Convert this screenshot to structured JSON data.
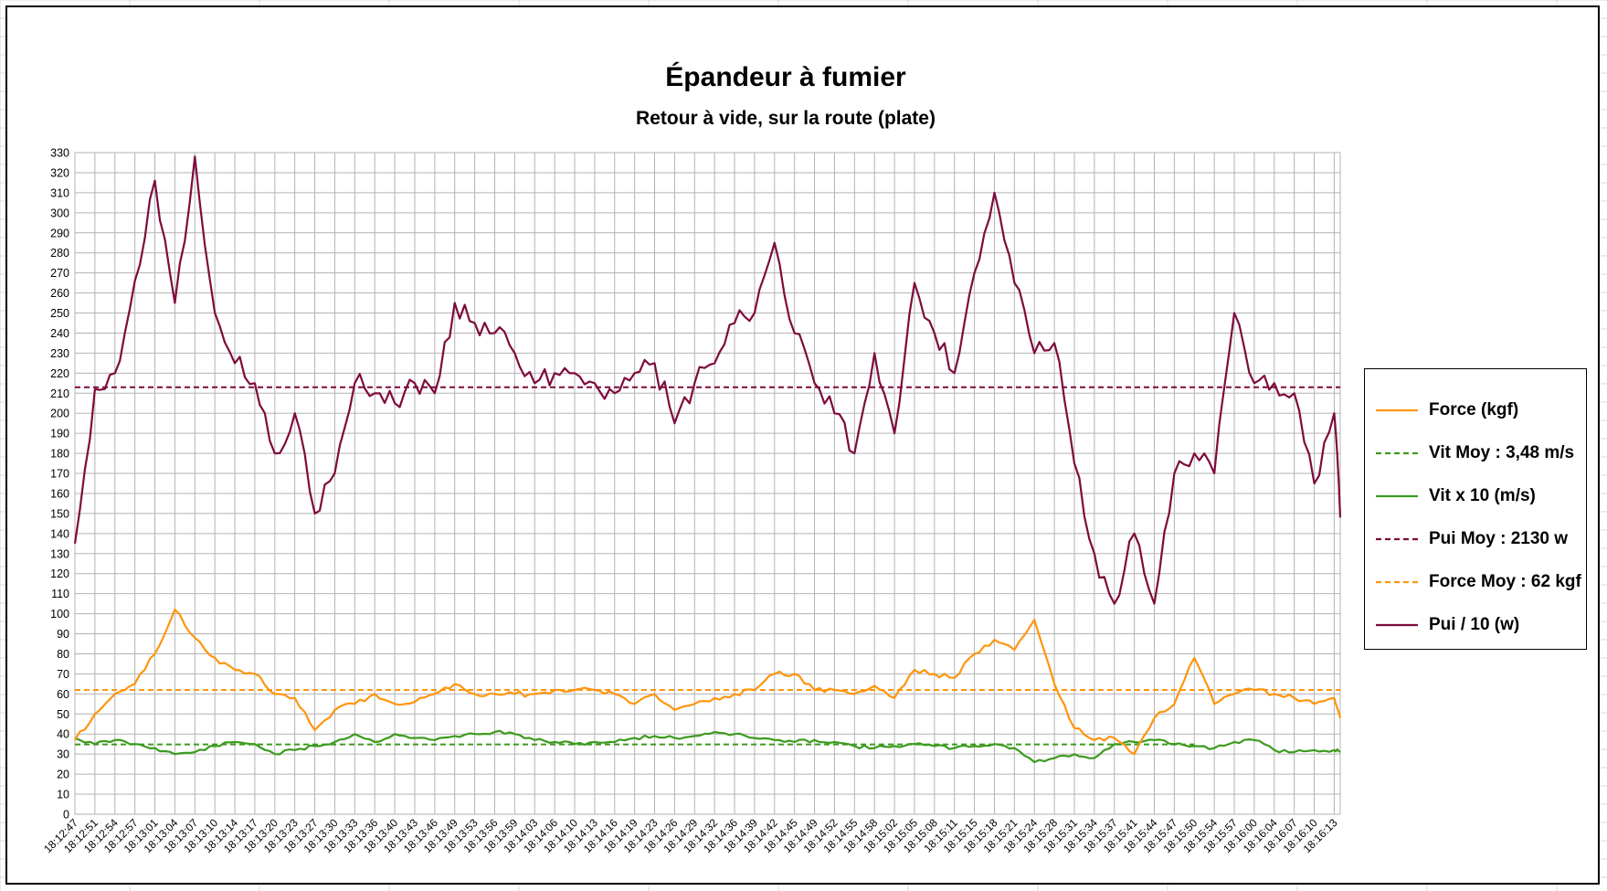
{
  "chart_data": {
    "type": "line",
    "title": "Épandeur à fumier",
    "subtitle": "Retour à vide, sur la route (plate)",
    "xlabel": "",
    "ylabel": "",
    "ylim": [
      0,
      330
    ],
    "ytick_step": 10,
    "grid": true,
    "legend_position": "right",
    "x_labels": [
      "18:12:47",
      "18:12:51",
      "18:12:54",
      "18:12:57",
      "18:13:01",
      "18:13:04",
      "18:13:07",
      "18:13:10",
      "18:13:14",
      "18:13:17",
      "18:13:20",
      "18:13:23",
      "18:13:27",
      "18:13:30",
      "18:13:33",
      "18:13:36",
      "18:13:40",
      "18:13:43",
      "18:13:46",
      "18:13:49",
      "18:13:53",
      "18:13:56",
      "18:13:59",
      "18:14:03",
      "18:14:06",
      "18:14:10",
      "18:14:13",
      "18:14:16",
      "18:14:19",
      "18:14:23",
      "18:14:26",
      "18:14:29",
      "18:14:32",
      "18:14:36",
      "18:14:39",
      "18:14:42",
      "18:14:45",
      "18:14:49",
      "18:14:52",
      "18:14:55",
      "18:14:58",
      "18:15:02",
      "18:15:05",
      "18:15:08",
      "18:15:11",
      "18:15:15",
      "18:15:18",
      "18:15:21",
      "18:15:24",
      "18:15:28",
      "18:15:31",
      "18:15:34",
      "18:15:37",
      "18:15:41",
      "18:15:44",
      "18:15:47",
      "18:15:50",
      "18:15:54",
      "18:15:57",
      "18:16:00",
      "18:16:04",
      "18:16:07",
      "18:16:10",
      "18:16:13"
    ],
    "legend": [
      {
        "name": "Force (kgf)",
        "color": "#ff950e",
        "dashed": false
      },
      {
        "name": "Vit Moy : 3,48 m/s",
        "color": "#3c9b1e",
        "dashed": true
      },
      {
        "name": "Vit x 10 (m/s)",
        "color": "#3c9b1e",
        "dashed": false
      },
      {
        "name": "Pui Moy : 2130 w",
        "color": "#7e0a3c",
        "dashed": true
      },
      {
        "name": "Force Moy : 62 kgf",
        "color": "#ff950e",
        "dashed": true
      },
      {
        "name": "Pui / 10 (w)",
        "color": "#7e0a3c",
        "dashed": false
      }
    ],
    "series": [
      {
        "name": "Pui / 10 (w)",
        "color": "#7e0a3c",
        "x": [
          0,
          1,
          2,
          3,
          4,
          5,
          6,
          7,
          8,
          9,
          10,
          11,
          12,
          13,
          14,
          15,
          16,
          17,
          18,
          19,
          20,
          21,
          22,
          23,
          24,
          25,
          26,
          27,
          28,
          29,
          30,
          31,
          32,
          33,
          34,
          35,
          36,
          37,
          38,
          39,
          40,
          41,
          42,
          43,
          44,
          45,
          46,
          47,
          48,
          49,
          50,
          51,
          52,
          53,
          54,
          55,
          56,
          57,
          58,
          59,
          60,
          61,
          62,
          63,
          63.3
        ],
        "values": [
          135,
          212,
          220,
          266,
          316,
          255,
          328,
          250,
          225,
          215,
          180,
          200,
          150,
          170,
          215,
          210,
          205,
          215,
          210,
          255,
          245,
          240,
          230,
          215,
          220,
          220,
          215,
          210,
          220,
          225,
          195,
          215,
          225,
          245,
          250,
          285,
          240,
          215,
          200,
          180,
          230,
          190,
          265,
          240,
          220,
          270,
          310,
          265,
          230,
          235,
          175,
          130,
          105,
          140,
          105,
          170,
          180,
          170,
          250,
          215,
          215,
          210,
          165,
          200,
          148
        ]
      },
      {
        "name": "Force (kgf)",
        "color": "#ff950e",
        "x": [
          0,
          1,
          2,
          3,
          4,
          5,
          6,
          7,
          8,
          9,
          10,
          11,
          12,
          13,
          14,
          15,
          16,
          17,
          18,
          19,
          20,
          21,
          22,
          23,
          24,
          25,
          26,
          27,
          28,
          29,
          30,
          31,
          32,
          33,
          34,
          35,
          36,
          37,
          38,
          39,
          40,
          41,
          42,
          43,
          44,
          45,
          46,
          47,
          48,
          49,
          50,
          51,
          52,
          53,
          54,
          55,
          56,
          57,
          58,
          59,
          60,
          61,
          62,
          63,
          63.3
        ],
        "values": [
          37,
          50,
          60,
          65,
          80,
          102,
          88,
          78,
          72,
          70,
          60,
          58,
          42,
          52,
          55,
          60,
          55,
          56,
          60,
          65,
          60,
          60,
          60,
          60,
          62,
          62,
          62,
          60,
          55,
          60,
          52,
          55,
          58,
          60,
          62,
          70,
          70,
          62,
          62,
          60,
          64,
          58,
          72,
          70,
          68,
          80,
          87,
          82,
          97,
          65,
          43,
          37,
          38,
          30,
          48,
          55,
          78,
          55,
          60,
          62,
          60,
          58,
          55,
          58,
          48
        ]
      },
      {
        "name": "Vit x 10 (m/s)",
        "color": "#3c9b1e",
        "x": [
          0,
          1,
          2,
          3,
          4,
          5,
          6,
          7,
          8,
          9,
          10,
          11,
          12,
          13,
          14,
          15,
          16,
          17,
          18,
          19,
          20,
          21,
          22,
          23,
          24,
          25,
          26,
          27,
          28,
          29,
          30,
          31,
          32,
          33,
          34,
          35,
          36,
          37,
          38,
          39,
          40,
          41,
          42,
          43,
          44,
          45,
          46,
          47,
          48,
          49,
          50,
          51,
          52,
          53,
          54,
          55,
          56,
          57,
          58,
          59,
          60,
          61,
          62,
          63,
          63.3
        ],
        "values": [
          38,
          35,
          37,
          35,
          33,
          30,
          31,
          34,
          36,
          35,
          30,
          32,
          34,
          36,
          40,
          36,
          40,
          38,
          37,
          39,
          40,
          41,
          40,
          37,
          36,
          35,
          36,
          36,
          38,
          39,
          38,
          39,
          41,
          40,
          38,
          37,
          36,
          37,
          36,
          34,
          33,
          34,
          35,
          34,
          33,
          34,
          35,
          33,
          26,
          28,
          30,
          28,
          35,
          36,
          37,
          35,
          34,
          33,
          36,
          37,
          32,
          31,
          32,
          32,
          31
        ]
      }
    ],
    "reference_lines": [
      {
        "name": "Pui Moy : 2130 w",
        "value": 213,
        "color": "#7e0a3c"
      },
      {
        "name": "Force Moy : 62 kgf",
        "value": 62,
        "color": "#ff950e"
      },
      {
        "name": "Vit Moy : 3,48 m/s",
        "value": 34.8,
        "color": "#3c9b1e"
      }
    ]
  }
}
